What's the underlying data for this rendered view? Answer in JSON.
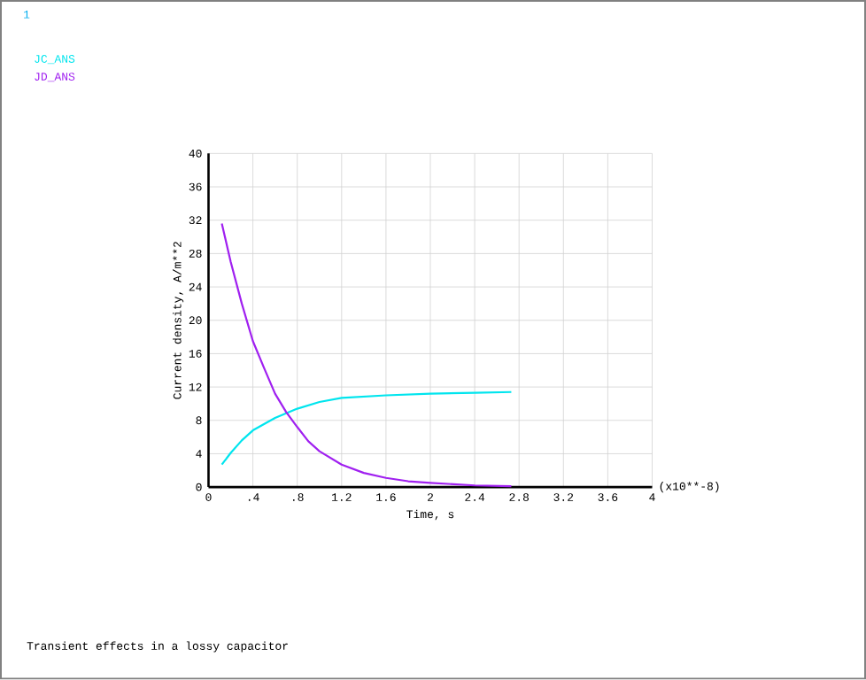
{
  "chart_data": {
    "type": "line",
    "xlabel": "Time, s",
    "ylabel": "Current density, A/m**2",
    "annotations": [
      "1",
      "(x10**-8)",
      "Transient effects in a lossy capacitor"
    ],
    "xlim": [
      0,
      4
    ],
    "ylim": [
      0,
      40
    ],
    "xticks": [
      0,
      {
        "value": 0.4,
        "label": ".4"
      },
      {
        "value": 0.8,
        "label": ".8"
      },
      1.2,
      1.6,
      2,
      2.4,
      2.8,
      3.2,
      3.6,
      4
    ],
    "yticks": [
      0,
      4,
      8,
      12,
      16,
      20,
      24,
      28,
      32,
      36,
      40
    ],
    "grid": true,
    "legend": "top left",
    "line_style": "solid",
    "series": [
      {
        "name": "JC_ANS",
        "color": "#00e5ee",
        "x": [
          0.12,
          0.2,
          0.3,
          0.4,
          0.6,
          0.8,
          1.0,
          1.2,
          1.6,
          2.0,
          2.4,
          2.73
        ],
        "values": [
          2.7,
          4.1,
          5.6,
          6.8,
          8.3,
          9.4,
          10.2,
          10.7,
          11.0,
          11.2,
          11.3,
          11.4
        ]
      },
      {
        "name": "JD_ANS",
        "color": "#a020f0",
        "x": [
          0.12,
          0.2,
          0.3,
          0.4,
          0.5,
          0.6,
          0.7,
          0.8,
          0.9,
          1.0,
          1.2,
          1.4,
          1.6,
          1.8,
          2.0,
          2.4,
          2.73
        ],
        "values": [
          31.6,
          27,
          22,
          17.5,
          14.3,
          11.2,
          9,
          7.2,
          5.5,
          4.3,
          2.7,
          1.7,
          1.1,
          0.7,
          0.5,
          0.2,
          0.1
        ]
      }
    ]
  }
}
